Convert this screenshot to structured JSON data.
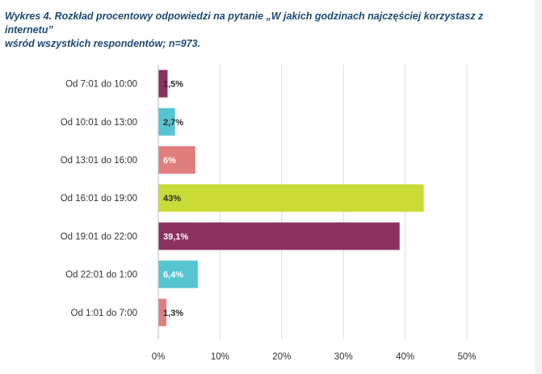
{
  "caption": {
    "line1": "Wykres 4. Rozkład procentowy odpowiedzi na pytanie „W jakich godzinach najczęściej korzystasz z internetu”",
    "line2": "wśród wszystkich respondentów; n=973."
  },
  "chart_data": {
    "type": "bar",
    "orientation": "horizontal",
    "title": "",
    "xlabel": "",
    "ylabel": "",
    "xlim": [
      0,
      50
    ],
    "x_ticks": [
      0,
      10,
      20,
      30,
      40,
      50
    ],
    "x_tick_labels": [
      "0%",
      "10%",
      "20%",
      "30%",
      "40%",
      "50%"
    ],
    "grid": "vertical",
    "legend": "none",
    "categories": [
      "Od 7:01 do 10:00",
      "Od 10:01 do 13:00",
      "Od 13:01 do 16:00",
      "Od 16:01 do 19:00",
      "Od 19:01 do 22:00",
      "Od 22:01 do 1:00",
      "Od 1:01 do 7:00"
    ],
    "values": [
      1.5,
      2.7,
      6,
      43,
      39.1,
      6.4,
      1.3
    ],
    "data_labels": [
      "1,5%",
      "2,7%",
      "6%",
      "43%",
      "39,1%",
      "6,4%",
      "1,3%"
    ],
    "colors": [
      "#8b3160",
      "#56c5d2",
      "#e07e7e",
      "#cadb37",
      "#8b3160",
      "#56c5d2",
      "#e07e7e"
    ],
    "label_colors": [
      "#2b2b2b",
      "#2b2b2b",
      "#ffffff",
      "#2b2b2b",
      "#ffffff",
      "#ffffff",
      "#2b2b2b"
    ],
    "grid_color": "#dcdcdc"
  }
}
